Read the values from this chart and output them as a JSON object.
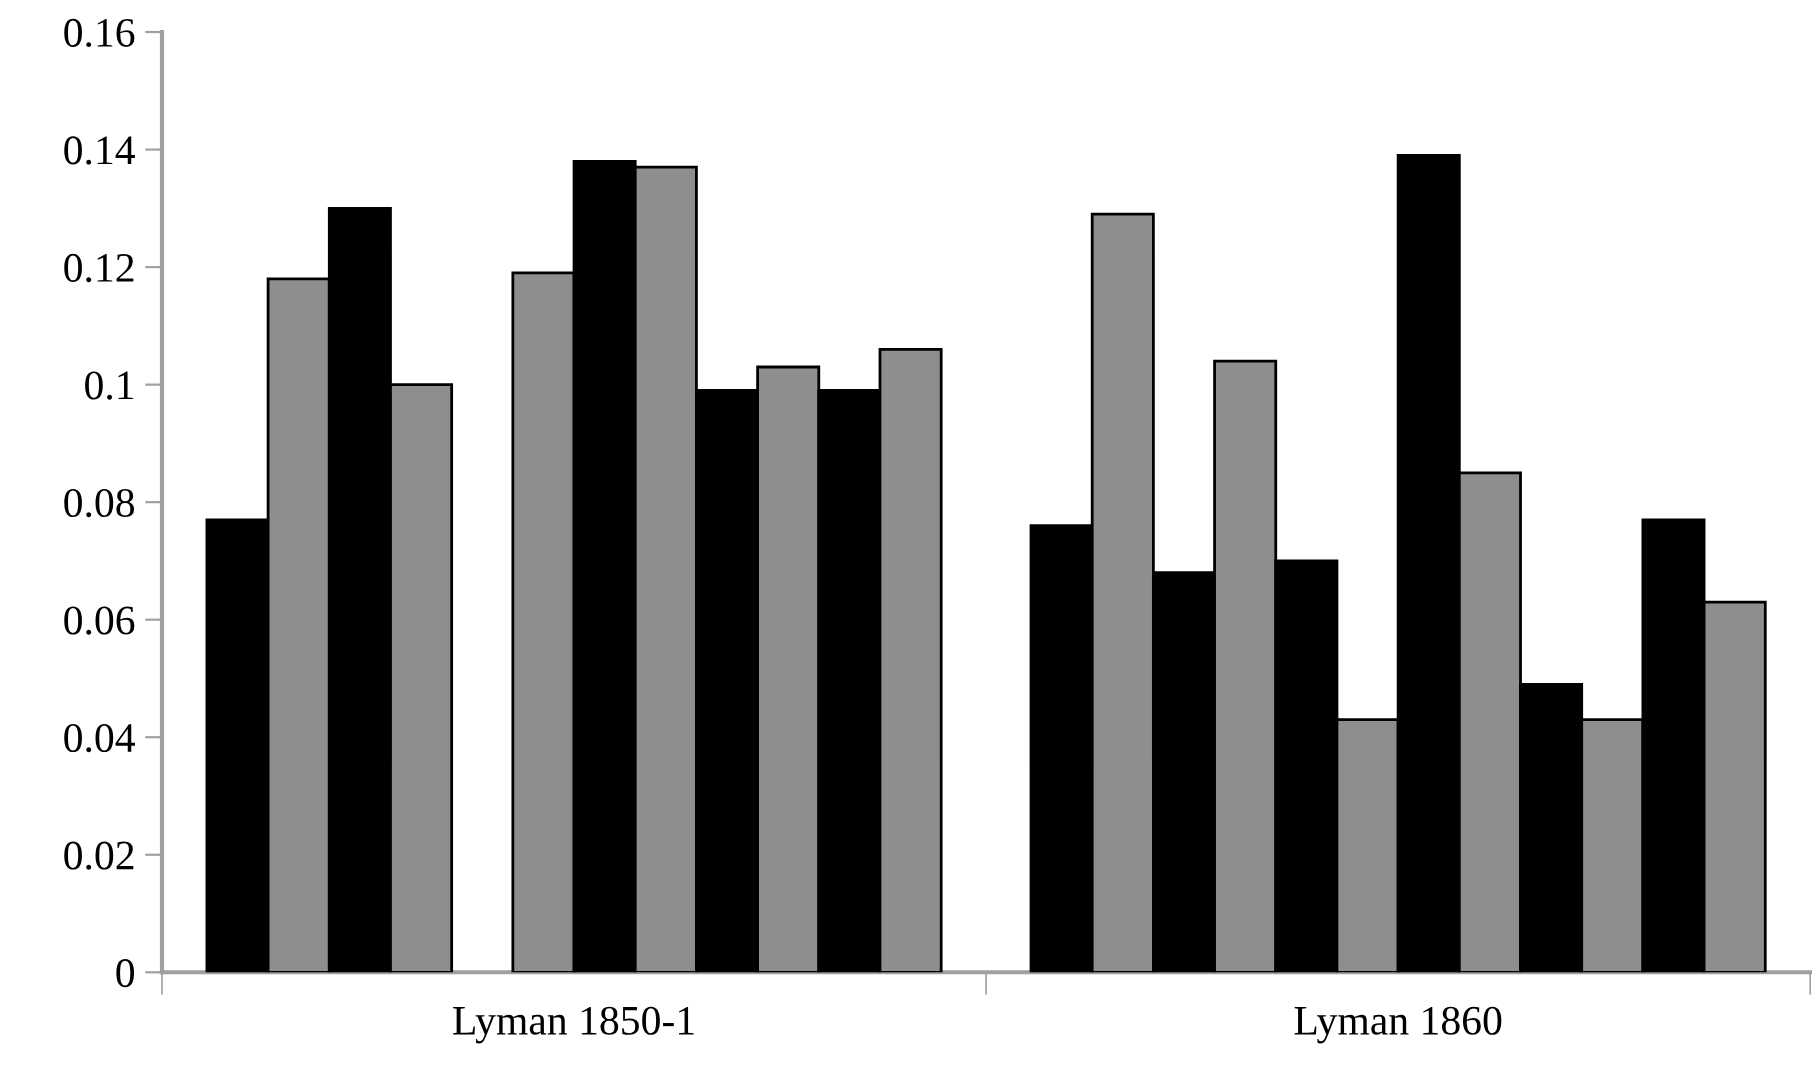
{
  "chart_data": {
    "type": "bar",
    "categories": [
      "Lyman 1850-1",
      "Lyman 1860"
    ],
    "series": [
      {
        "color": "#000000",
        "values": [
          0.077,
          0.076
        ]
      },
      {
        "color": "#8e8e8e",
        "values": [
          0.118,
          0.129
        ]
      },
      {
        "color": "#000000",
        "values": [
          0.13,
          0.068
        ]
      },
      {
        "color": "#8e8e8e",
        "values": [
          0.1,
          0.104
        ]
      },
      {
        "color": "#000000",
        "values": [
          null,
          0.07
        ]
      },
      {
        "color": "#8e8e8e",
        "values": [
          0.119,
          0.043
        ]
      },
      {
        "color": "#000000",
        "values": [
          0.138,
          0.139
        ]
      },
      {
        "color": "#8e8e8e",
        "values": [
          0.137,
          0.085
        ]
      },
      {
        "color": "#000000",
        "values": [
          0.099,
          0.049
        ]
      },
      {
        "color": "#8e8e8e",
        "values": [
          0.103,
          0.043
        ]
      },
      {
        "color": "#000000",
        "values": [
          0.099,
          0.077
        ]
      },
      {
        "color": "#8e8e8e",
        "values": [
          0.106,
          0.063
        ]
      }
    ],
    "ylim": [
      0,
      0.16
    ],
    "yticks": [
      0,
      0.02,
      0.04,
      0.06,
      0.08,
      0.1,
      0.12,
      0.14,
      0.16
    ],
    "grid": false,
    "legend": false
  }
}
